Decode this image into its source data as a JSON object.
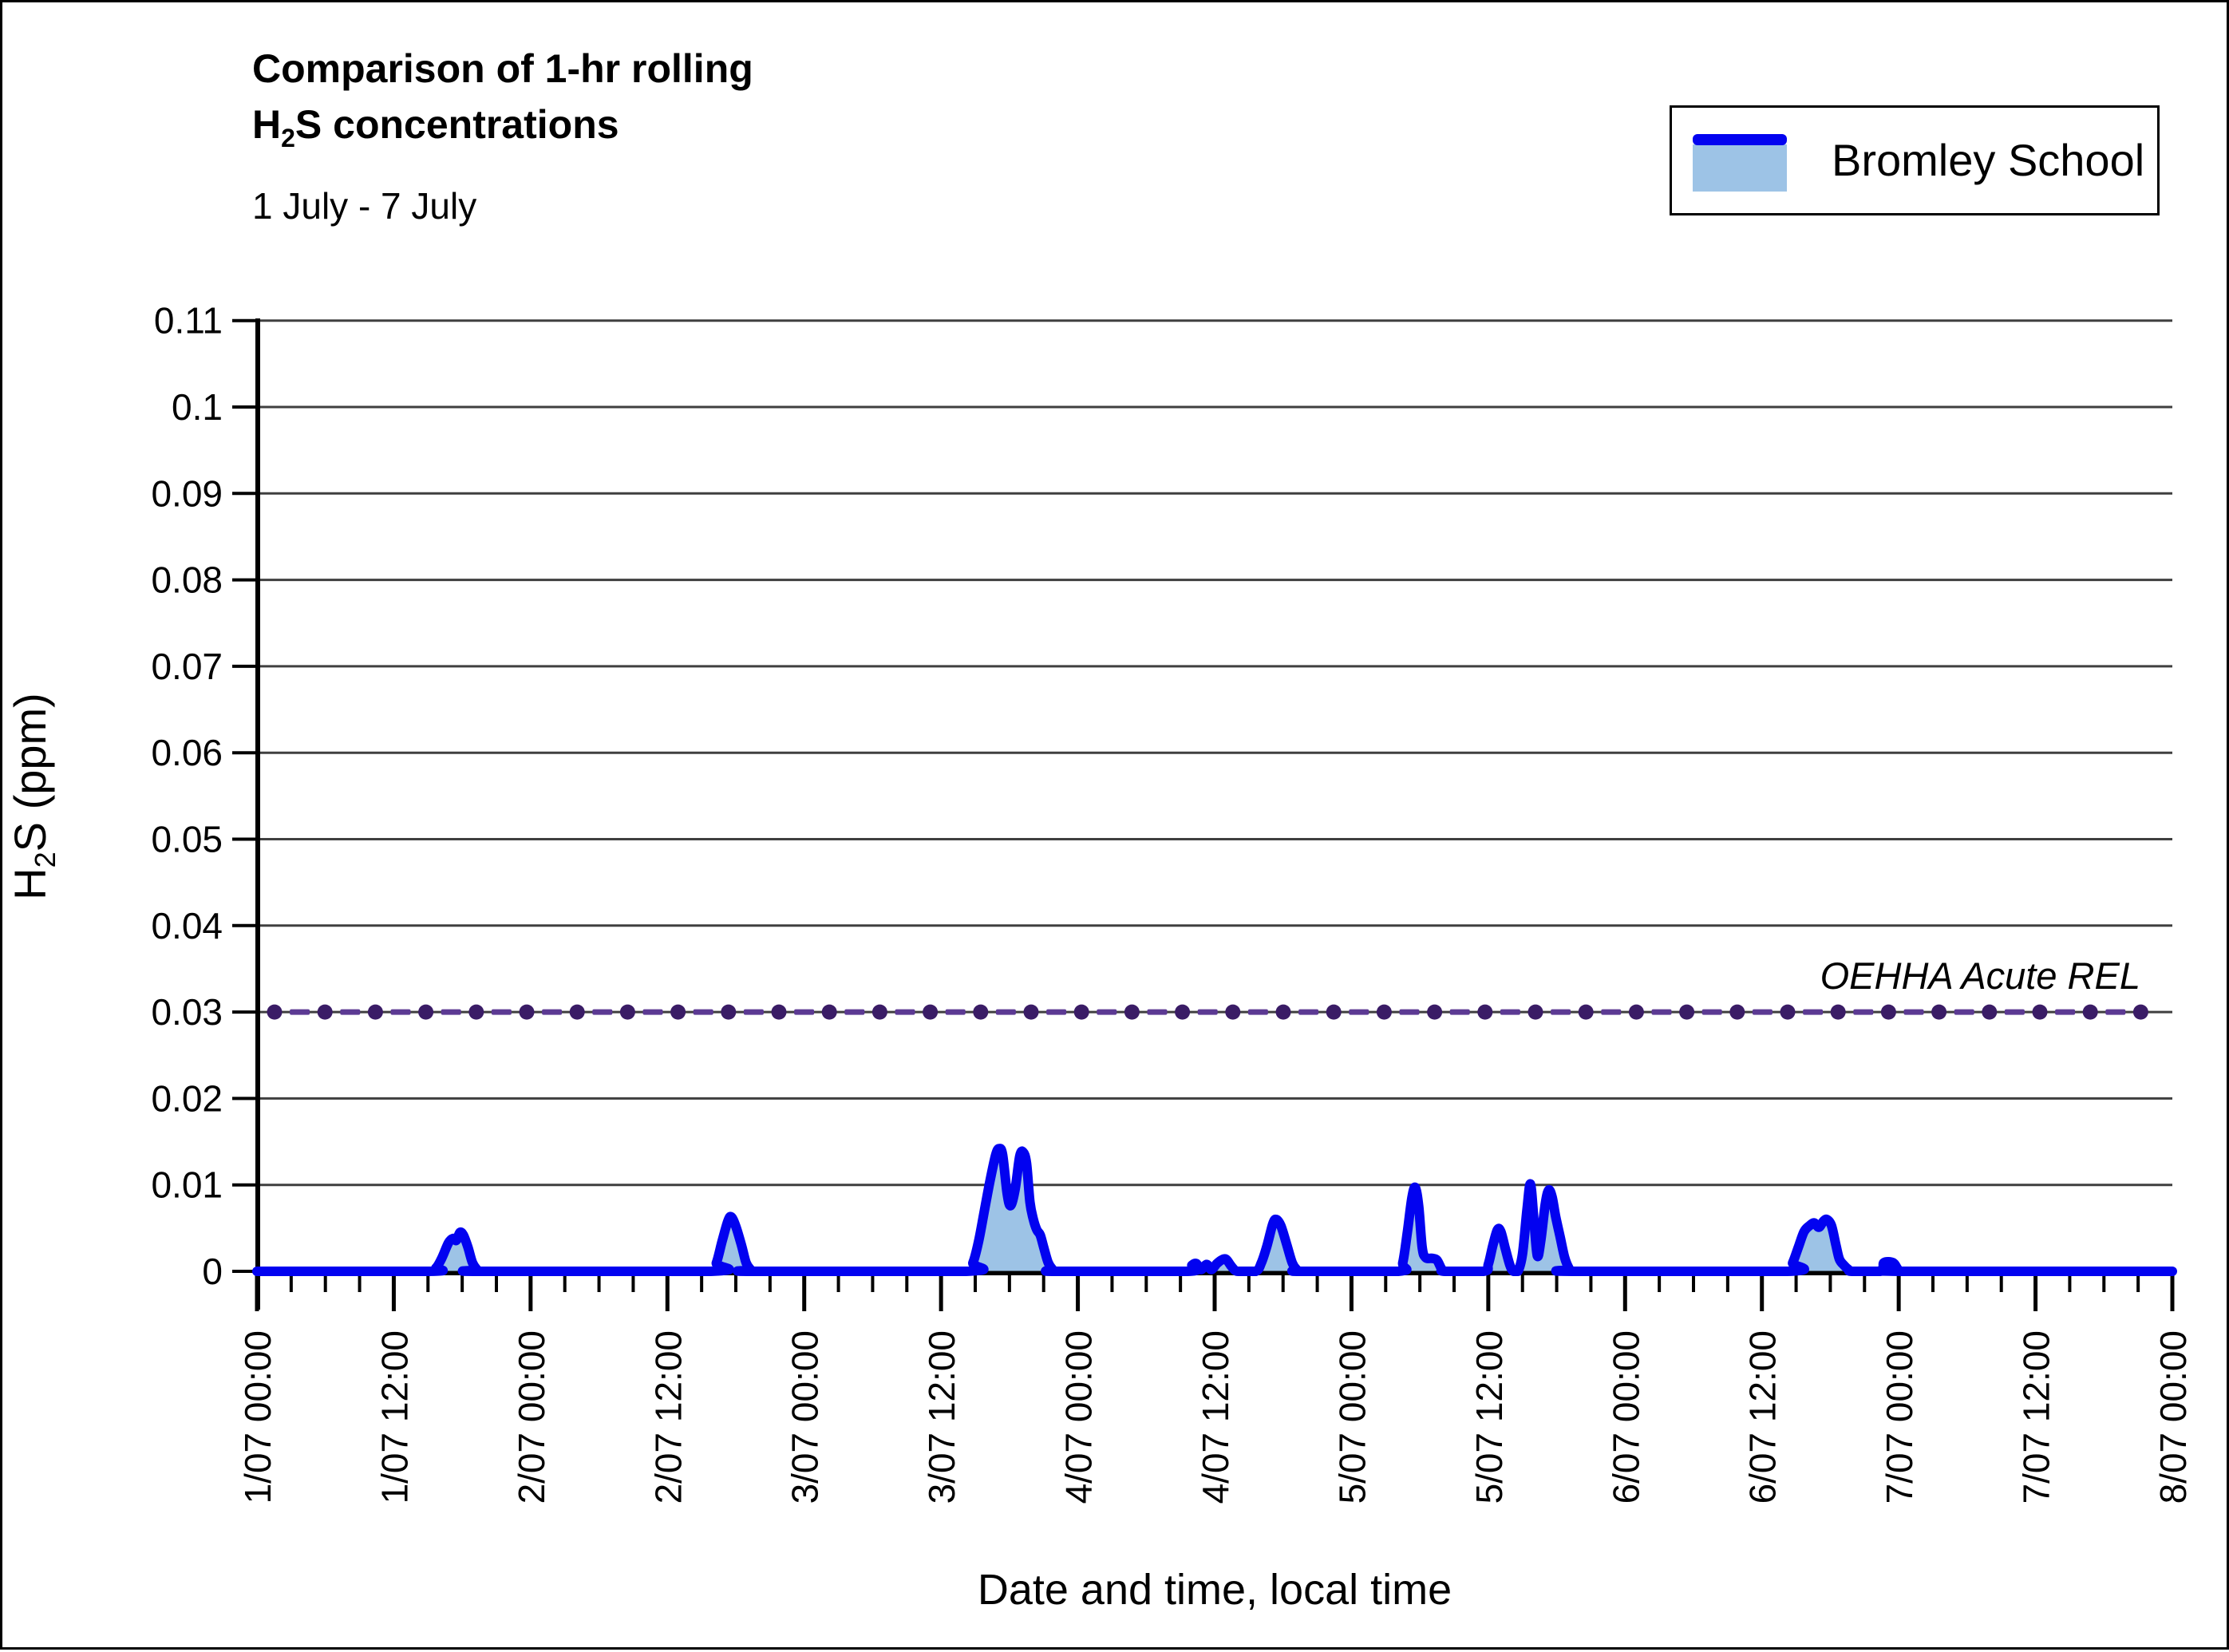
{
  "header": {
    "title_line1": "Comparison of 1-hr rolling",
    "title_line2": {
      "pre": "H",
      "sub": "2",
      "post": "S concentrations"
    },
    "subtitle": "1 July - 7 July"
  },
  "legend": {
    "series_label": "Bromley School"
  },
  "colors": {
    "line": "#0202F0",
    "fill": "#9DC3E6",
    "gridline": "#3F3F3F",
    "axis": "#000000",
    "rel_dot": "#3A1C66",
    "rel_dash": "#5C3A93"
  },
  "chart_data": {
    "type": "area",
    "title": "Comparison of 1-hr rolling H2S concentrations",
    "subtitle": "1 July - 7 July",
    "xlabel": "Date and time, local time",
    "ylabel_parts": {
      "pre": "H",
      "sub": "2",
      "post": "S (ppm)"
    },
    "ylim": [
      0,
      0.11
    ],
    "ytick_step": 0.01,
    "y_tick_labels": [
      "0",
      "0.01",
      "0.02",
      "0.03",
      "0.04",
      "0.05",
      "0.06",
      "0.07",
      "0.08",
      "0.09",
      "0.1",
      "0.11"
    ],
    "x_hours_total": 168,
    "x_major_every_hours": 12,
    "x_minor_every_hours": 3,
    "x_tick_labels": [
      "1/07 00:00",
      "1/07 12:00",
      "2/07 00:00",
      "2/07 12:00",
      "3/07 00:00",
      "3/07 12:00",
      "4/07 00:00",
      "4/07 12:00",
      "5/07 00:00",
      "5/07 12:00",
      "6/07 00:00",
      "6/07 12:00",
      "7/07 00:00",
      "7/07 12:00",
      "8/07 00:00"
    ],
    "grid": true,
    "legend_position": "top-right",
    "reference_line": {
      "label": "OEHHA Acute REL",
      "value": 0.03
    },
    "series": [
      {
        "name": "Bromley School",
        "units": "ppm",
        "x_unit": "hours since 1/07 00:00 local",
        "points": [
          [
            0,
            0
          ],
          [
            15,
            0
          ],
          [
            15.7,
            0.0004
          ],
          [
            16.2,
            0.0015
          ],
          [
            16.8,
            0.0033
          ],
          [
            17.2,
            0.0038
          ],
          [
            17.5,
            0.0036
          ],
          [
            17.8,
            0.0045
          ],
          [
            18.1,
            0.0042
          ],
          [
            18.5,
            0.0028
          ],
          [
            18.9,
            0.001
          ],
          [
            19.3,
            0.0002
          ],
          [
            19.6,
            0
          ],
          [
            39.8,
            0
          ],
          [
            40.3,
            0.001
          ],
          [
            40.8,
            0.0035
          ],
          [
            41.3,
            0.0058
          ],
          [
            41.6,
            0.0063
          ],
          [
            42,
            0.0052
          ],
          [
            42.5,
            0.003
          ],
          [
            42.9,
            0.001
          ],
          [
            43.3,
            0.0002
          ],
          [
            43.6,
            0
          ],
          [
            62.2,
            0
          ],
          [
            62.8,
            0.001
          ],
          [
            63.3,
            0.0035
          ],
          [
            63.8,
            0.007
          ],
          [
            64.3,
            0.0105
          ],
          [
            64.8,
            0.0135
          ],
          [
            65.1,
            0.0142
          ],
          [
            65.4,
            0.0135
          ],
          [
            65.8,
            0.009
          ],
          [
            66.1,
            0.0076
          ],
          [
            66.5,
            0.0095
          ],
          [
            66.9,
            0.0133
          ],
          [
            67.2,
            0.0138
          ],
          [
            67.5,
            0.0125
          ],
          [
            67.8,
            0.008
          ],
          [
            68.1,
            0.006
          ],
          [
            68.4,
            0.0048
          ],
          [
            68.7,
            0.0042
          ],
          [
            69,
            0.0028
          ],
          [
            69.4,
            0.001
          ],
          [
            69.8,
            0.0002
          ],
          [
            70.1,
            0
          ],
          [
            81.6,
            0
          ],
          [
            82,
            0.0007
          ],
          [
            82.4,
            0.0009
          ],
          [
            82.8,
            0.0002
          ],
          [
            83.3,
            0.0008
          ],
          [
            83.7,
            0.0002
          ],
          [
            84.2,
            0.0009
          ],
          [
            84.6,
            0.0013
          ],
          [
            85,
            0.0014
          ],
          [
            85.4,
            0.0007
          ],
          [
            85.8,
            0.0001
          ],
          [
            86.2,
            0
          ],
          [
            87.6,
            0
          ],
          [
            88.1,
            0.001
          ],
          [
            88.6,
            0.003
          ],
          [
            89.1,
            0.0055
          ],
          [
            89.4,
            0.006
          ],
          [
            89.8,
            0.0053
          ],
          [
            90.3,
            0.0032
          ],
          [
            90.8,
            0.001
          ],
          [
            91.2,
            0.0002
          ],
          [
            91.5,
            0
          ],
          [
            100.1,
            0
          ],
          [
            100.5,
            0.001
          ],
          [
            100.9,
            0.0045
          ],
          [
            101.3,
            0.0085
          ],
          [
            101.6,
            0.0097
          ],
          [
            101.9,
            0.0075
          ],
          [
            102.2,
            0.0028
          ],
          [
            102.5,
            0.0016
          ],
          [
            103.1,
            0.0015
          ],
          [
            103.5,
            0.0013
          ],
          [
            103.9,
            0.0003
          ],
          [
            104.2,
            0
          ],
          [
            107.6,
            0
          ],
          [
            108,
            0.0008
          ],
          [
            108.4,
            0.003
          ],
          [
            108.8,
            0.0048
          ],
          [
            109.1,
            0.0046
          ],
          [
            109.5,
            0.0026
          ],
          [
            109.9,
            0.0007
          ],
          [
            110.2,
            0
          ],
          [
            110.6,
            0
          ],
          [
            111,
            0.002
          ],
          [
            111.4,
            0.0072
          ],
          [
            111.7,
            0.0101
          ],
          [
            112,
            0.006
          ],
          [
            112.3,
            0.0018
          ],
          [
            112.6,
            0.0035
          ],
          [
            113,
            0.0078
          ],
          [
            113.3,
            0.0094
          ],
          [
            113.6,
            0.0086
          ],
          [
            113.9,
            0.0064
          ],
          [
            114.3,
            0.004
          ],
          [
            114.7,
            0.0016
          ],
          [
            115.1,
            0.0003
          ],
          [
            115.4,
            0
          ],
          [
            134.2,
            0
          ],
          [
            134.7,
            0.001
          ],
          [
            135.2,
            0.0028
          ],
          [
            135.7,
            0.0046
          ],
          [
            136.2,
            0.0053
          ],
          [
            136.6,
            0.0056
          ],
          [
            137,
            0.0051
          ],
          [
            137.4,
            0.0058
          ],
          [
            137.7,
            0.006
          ],
          [
            138.1,
            0.0053
          ],
          [
            138.5,
            0.003
          ],
          [
            138.8,
            0.0014
          ],
          [
            139.2,
            0.0007
          ],
          [
            139.6,
            0.0002
          ],
          [
            139.9,
            0
          ],
          [
            142.4,
            0
          ],
          [
            142.7,
            0.001
          ],
          [
            143.5,
            0.001
          ],
          [
            143.9,
            0.0003
          ],
          [
            144.2,
            0
          ],
          [
            168,
            0
          ]
        ]
      }
    ]
  }
}
